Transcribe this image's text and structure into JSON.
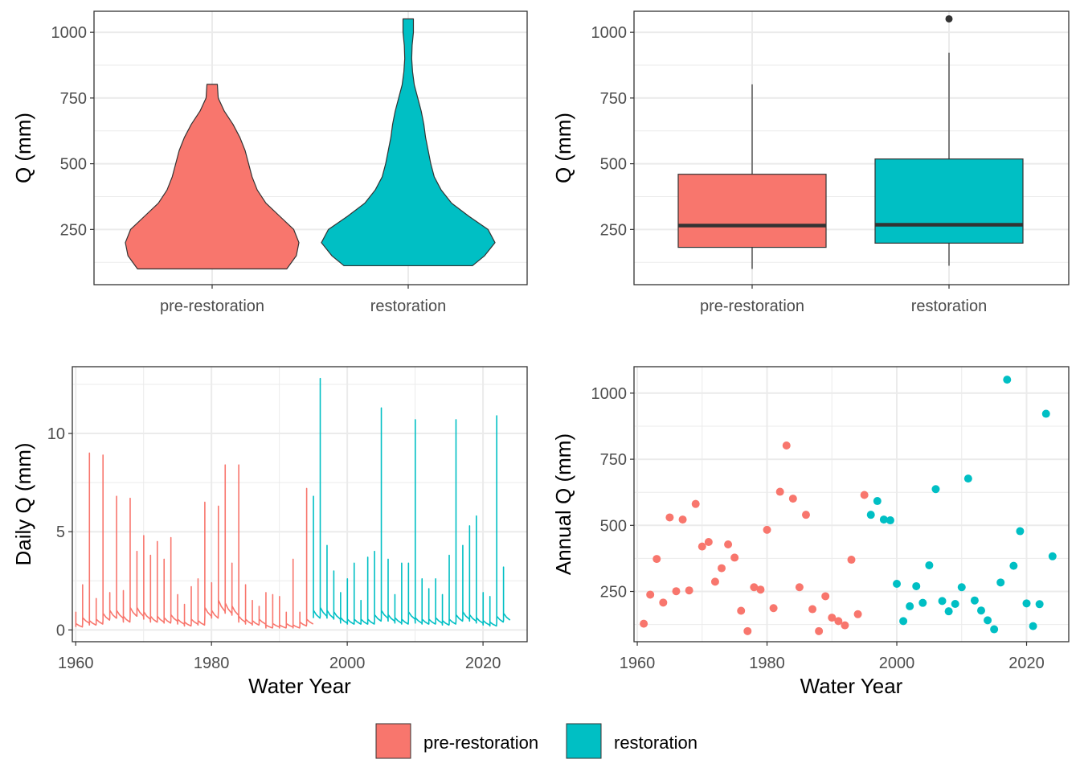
{
  "colors": {
    "pre": "#F8766D",
    "rest": "#00BFC4",
    "outline": "#333333",
    "grid": "#EBEBEB",
    "panel_border": "#333333"
  },
  "legend": {
    "items": [
      {
        "key": "pre",
        "label": "pre-restoration"
      },
      {
        "key": "rest",
        "label": "restoration"
      }
    ]
  },
  "chart_data": [
    {
      "type": "violin",
      "xlabel": "",
      "ylabel": "Q (mm)",
      "categories": [
        "pre-restoration",
        "restoration"
      ],
      "ylim": [
        40,
        1080
      ],
      "yticks": [
        250,
        500,
        750,
        1000
      ],
      "series": [
        {
          "category": "pre-restoration",
          "min": 100,
          "max": 802,
          "width_profile": [
            [
              100,
              0.86
            ],
            [
              150,
              0.97
            ],
            [
              200,
              1.0
            ],
            [
              250,
              0.94
            ],
            [
              300,
              0.78
            ],
            [
              350,
              0.62
            ],
            [
              400,
              0.52
            ],
            [
              450,
              0.46
            ],
            [
              500,
              0.42
            ],
            [
              550,
              0.38
            ],
            [
              600,
              0.32
            ],
            [
              650,
              0.24
            ],
            [
              700,
              0.14
            ],
            [
              750,
              0.07
            ],
            [
              802,
              0.06
            ]
          ]
        },
        {
          "category": "restoration",
          "min": 112,
          "max": 1051,
          "width_profile": [
            [
              112,
              0.74
            ],
            [
              150,
              0.88
            ],
            [
              200,
              1.0
            ],
            [
              250,
              0.92
            ],
            [
              300,
              0.7
            ],
            [
              350,
              0.5
            ],
            [
              400,
              0.38
            ],
            [
              450,
              0.3
            ],
            [
              500,
              0.26
            ],
            [
              550,
              0.23
            ],
            [
              600,
              0.2
            ],
            [
              650,
              0.18
            ],
            [
              700,
              0.15
            ],
            [
              750,
              0.11
            ],
            [
              800,
              0.07
            ],
            [
              850,
              0.05
            ],
            [
              900,
              0.04
            ],
            [
              950,
              0.045
            ],
            [
              1000,
              0.06
            ],
            [
              1051,
              0.06
            ]
          ]
        }
      ]
    },
    {
      "type": "box",
      "xlabel": "",
      "ylabel": "Q (mm)",
      "categories": [
        "pre-restoration",
        "restoration"
      ],
      "ylim": [
        40,
        1080
      ],
      "yticks": [
        250,
        500,
        750,
        1000
      ],
      "series": [
        {
          "category": "pre-restoration",
          "whisker_low": 100,
          "q1": 182,
          "median": 265,
          "q3": 460,
          "whisker_high": 802,
          "outliers": []
        },
        {
          "category": "restoration",
          "whisker_low": 112,
          "q1": 198,
          "median": 268,
          "q3": 518,
          "whisker_high": 922,
          "outliers": [
            1051
          ]
        }
      ]
    },
    {
      "type": "line",
      "xlabel": "Water Year",
      "ylabel": "Daily Q (mm)",
      "xlim": [
        1959.5,
        2026.5
      ],
      "ylim": [
        -0.6,
        13.4
      ],
      "xticks": [
        1960,
        1980,
        2000,
        2020
      ],
      "yticks": [
        0,
        5,
        10
      ],
      "split_year": 1996,
      "years": [
        1961,
        1962,
        1963,
        1964,
        1965,
        1966,
        1967,
        1968,
        1969,
        1970,
        1971,
        1972,
        1973,
        1974,
        1975,
        1976,
        1977,
        1978,
        1979,
        1980,
        1981,
        1982,
        1983,
        1984,
        1985,
        1986,
        1987,
        1988,
        1989,
        1990,
        1991,
        1992,
        1993,
        1994,
        1995,
        1996,
        1997,
        1998,
        1999,
        2000,
        2001,
        2002,
        2003,
        2004,
        2005,
        2006,
        2007,
        2008,
        2009,
        2010,
        2011,
        2012,
        2013,
        2014,
        2015,
        2016,
        2017,
        2018,
        2019,
        2020,
        2021,
        2022,
        2023,
        2024
      ],
      "annual_peak": [
        0.9,
        2.3,
        9.0,
        1.6,
        8.9,
        1.9,
        6.8,
        2.0,
        6.7,
        4.0,
        4.8,
        3.8,
        4.5,
        3.6,
        4.7,
        1.8,
        1.3,
        2.2,
        2.6,
        6.5,
        2.4,
        6.3,
        8.4,
        3.4,
        8.4,
        2.3,
        1.5,
        1.2,
        1.9,
        1.8,
        1.7,
        0.9,
        3.6,
        0.9,
        7.2,
        6.8,
        12.8,
        4.3,
        3.0,
        1.9,
        2.6,
        3.4,
        1.5,
        3.7,
        4.0,
        11.3,
        3.6,
        1.8,
        3.4,
        3.4,
        10.7,
        2.6,
        2.1,
        2.6,
        1.8,
        3.8,
        10.7,
        4.3,
        5.3,
        5.8,
        1.9,
        1.7,
        10.9,
        3.2
      ],
      "baseflow": [
        0.15,
        0.35,
        0.25,
        0.3,
        0.5,
        0.6,
        0.6,
        0.4,
        0.7,
        0.7,
        0.55,
        0.4,
        0.4,
        0.35,
        0.45,
        0.3,
        0.2,
        0.3,
        0.25,
        0.7,
        0.6,
        0.95,
        0.85,
        0.75,
        0.4,
        0.3,
        0.25,
        0.3,
        0.1,
        0.15,
        0.1,
        0.15,
        0.1,
        0.2,
        0.3,
        0.6,
        0.7,
        0.6,
        0.55,
        0.35,
        0.3,
        0.3,
        0.3,
        0.3,
        0.45,
        0.6,
        0.45,
        0.35,
        0.3,
        0.55,
        0.35,
        0.3,
        0.3,
        0.35,
        0.25,
        0.3,
        0.45,
        0.55,
        0.45,
        0.35,
        0.25,
        0.2,
        0.4,
        0.5
      ]
    },
    {
      "type": "scatter",
      "xlabel": "Water Year",
      "ylabel": "Annual Q (mm)",
      "xlim": [
        1959.5,
        2026.5
      ],
      "ylim": [
        60,
        1100
      ],
      "xticks": [
        1960,
        1980,
        2000,
        2020
      ],
      "yticks": [
        250,
        500,
        750,
        1000
      ],
      "split_year": 1996,
      "points": [
        [
          1961,
          128
        ],
        [
          1962,
          238
        ],
        [
          1963,
          373
        ],
        [
          1964,
          208
        ],
        [
          1965,
          530
        ],
        [
          1966,
          251
        ],
        [
          1967,
          522
        ],
        [
          1968,
          254
        ],
        [
          1969,
          581
        ],
        [
          1970,
          420
        ],
        [
          1971,
          437
        ],
        [
          1972,
          287
        ],
        [
          1973,
          338
        ],
        [
          1974,
          428
        ],
        [
          1975,
          378
        ],
        [
          1976,
          177
        ],
        [
          1977,
          100
        ],
        [
          1978,
          266
        ],
        [
          1979,
          257
        ],
        [
          1980,
          483
        ],
        [
          1981,
          187
        ],
        [
          1982,
          627
        ],
        [
          1983,
          802
        ],
        [
          1984,
          601
        ],
        [
          1985,
          266
        ],
        [
          1986,
          540
        ],
        [
          1987,
          183
        ],
        [
          1988,
          100
        ],
        [
          1989,
          232
        ],
        [
          1990,
          151
        ],
        [
          1991,
          138
        ],
        [
          1992,
          122
        ],
        [
          1993,
          370
        ],
        [
          1994,
          164
        ],
        [
          1995,
          615
        ],
        [
          1996,
          540
        ],
        [
          1997,
          592
        ],
        [
          1998,
          522
        ],
        [
          1999,
          519
        ],
        [
          2000,
          279
        ],
        [
          2001,
          138
        ],
        [
          2002,
          194
        ],
        [
          2003,
          270
        ],
        [
          2004,
          207
        ],
        [
          2005,
          349
        ],
        [
          2006,
          637
        ],
        [
          2007,
          214
        ],
        [
          2008,
          175
        ],
        [
          2009,
          203
        ],
        [
          2010,
          266
        ],
        [
          2011,
          677
        ],
        [
          2012,
          216
        ],
        [
          2013,
          178
        ],
        [
          2014,
          141
        ],
        [
          2015,
          107
        ],
        [
          2016,
          284
        ],
        [
          2017,
          1051
        ],
        [
          2018,
          347
        ],
        [
          2019,
          478
        ],
        [
          2020,
          205
        ],
        [
          2021,
          119
        ],
        [
          2022,
          202
        ],
        [
          2023,
          922
        ],
        [
          2024,
          383
        ]
      ]
    }
  ]
}
